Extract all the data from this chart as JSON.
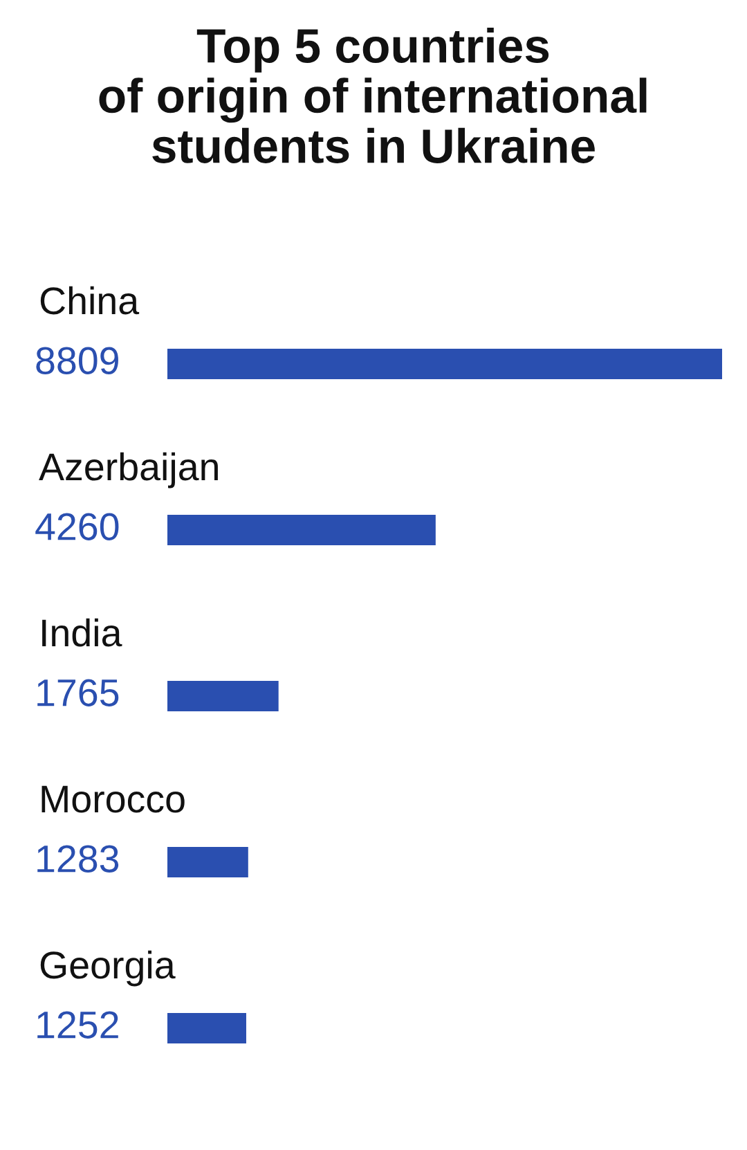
{
  "chart_data": {
    "type": "bar",
    "orientation": "horizontal",
    "title": "Top 5 countries\nof origin of international\nstudents in Ukraine",
    "categories": [
      "China",
      "Azerbaijan",
      "India",
      "Morocco",
      "Georgia"
    ],
    "values": [
      8809,
      4260,
      1765,
      1283,
      1252
    ],
    "color": "#2a4fb0",
    "data_labels": true
  }
}
